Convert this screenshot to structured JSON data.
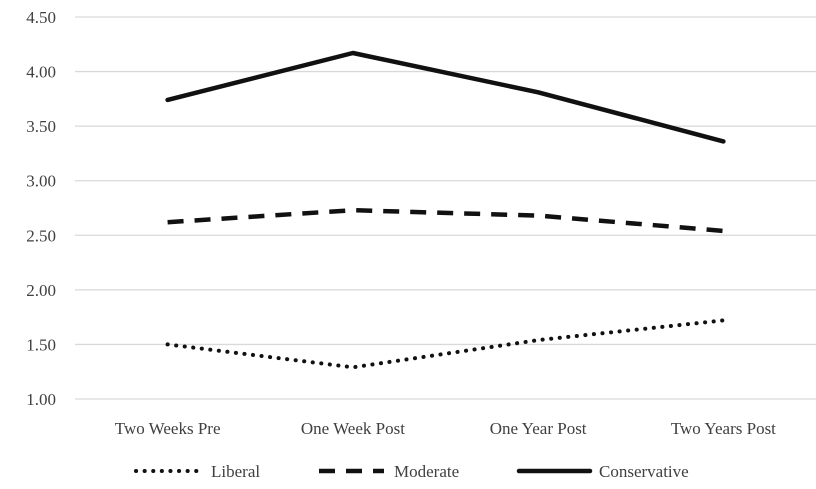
{
  "chart_data": {
    "type": "line",
    "title": "",
    "xlabel": "",
    "ylabel": "",
    "categories": [
      "Two Weeks Pre",
      "One Week Post",
      "One Year Post",
      "Two Years Post"
    ],
    "ylim": [
      1.0,
      4.5
    ],
    "yticks": [
      "1.00",
      "1.50",
      "2.00",
      "2.50",
      "3.00",
      "3.50",
      "4.00",
      "4.50"
    ],
    "grid": true,
    "legend_position": "bottom",
    "series": [
      {
        "name": "Liberal",
        "values": [
          1.5,
          1.29,
          1.54,
          1.72
        ],
        "style": "dotted",
        "color": "#111111"
      },
      {
        "name": "Moderate",
        "values": [
          2.62,
          2.73,
          2.68,
          2.54
        ],
        "style": "dashed",
        "color": "#111111"
      },
      {
        "name": "Conservative",
        "values": [
          3.74,
          4.17,
          3.81,
          3.36
        ],
        "style": "solid",
        "color": "#111111"
      }
    ]
  }
}
